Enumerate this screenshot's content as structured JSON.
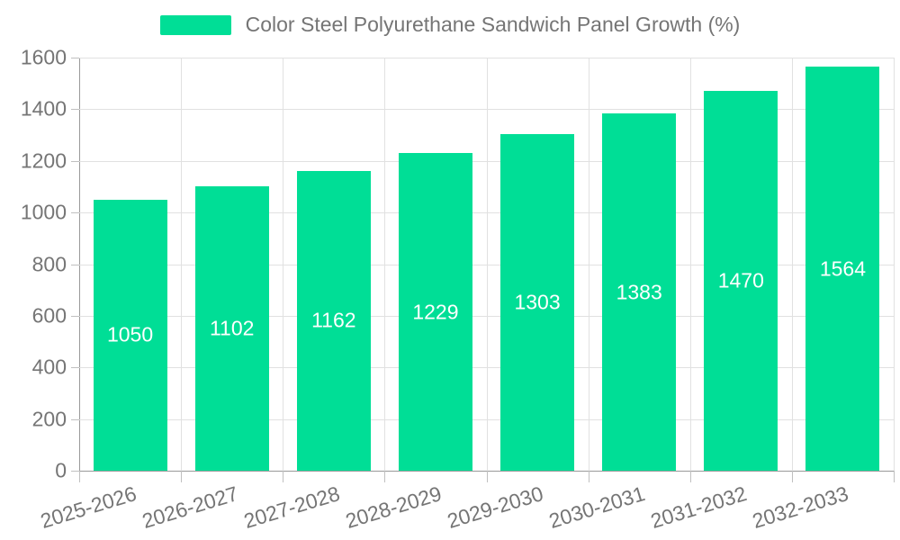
{
  "legend": {
    "series_label": "Color Steel Polyurethane Sandwich Panel Growth (%)"
  },
  "chart_data": {
    "type": "bar",
    "title": "Color Steel Polyurethane Sandwich Panel Growth (%)",
    "series_name": "Color Steel Polyurethane Sandwich Panel Growth (%)",
    "categories": [
      "2025-2026",
      "2026-2027",
      "2027-2028",
      "2028-2029",
      "2029-2030",
      "2030-2031",
      "2031-2032",
      "2032-2033"
    ],
    "values": [
      1050,
      1102,
      1162,
      1229,
      1303,
      1383,
      1470,
      1564
    ],
    "bar_value_labels": [
      "1050",
      "1102",
      "1162",
      "1229",
      "1303",
      "1383",
      "1470",
      "1564"
    ],
    "xlabel": "",
    "ylabel": "",
    "ylim": [
      0,
      1600
    ],
    "yticks": [
      0,
      200,
      400,
      600,
      800,
      1000,
      1200,
      1400,
      1600
    ],
    "grid": true,
    "legend_position": "top-center",
    "x_tick_rotation_deg": -17,
    "colors": {
      "bar": "#00DE96",
      "bar_label": "#FFFFFF",
      "axis_text": "#757575",
      "axis_line": "#999999",
      "tick_line": "#C0C0C0",
      "gridline": "#E1E1E1",
      "background": "#FFFFFF"
    }
  }
}
